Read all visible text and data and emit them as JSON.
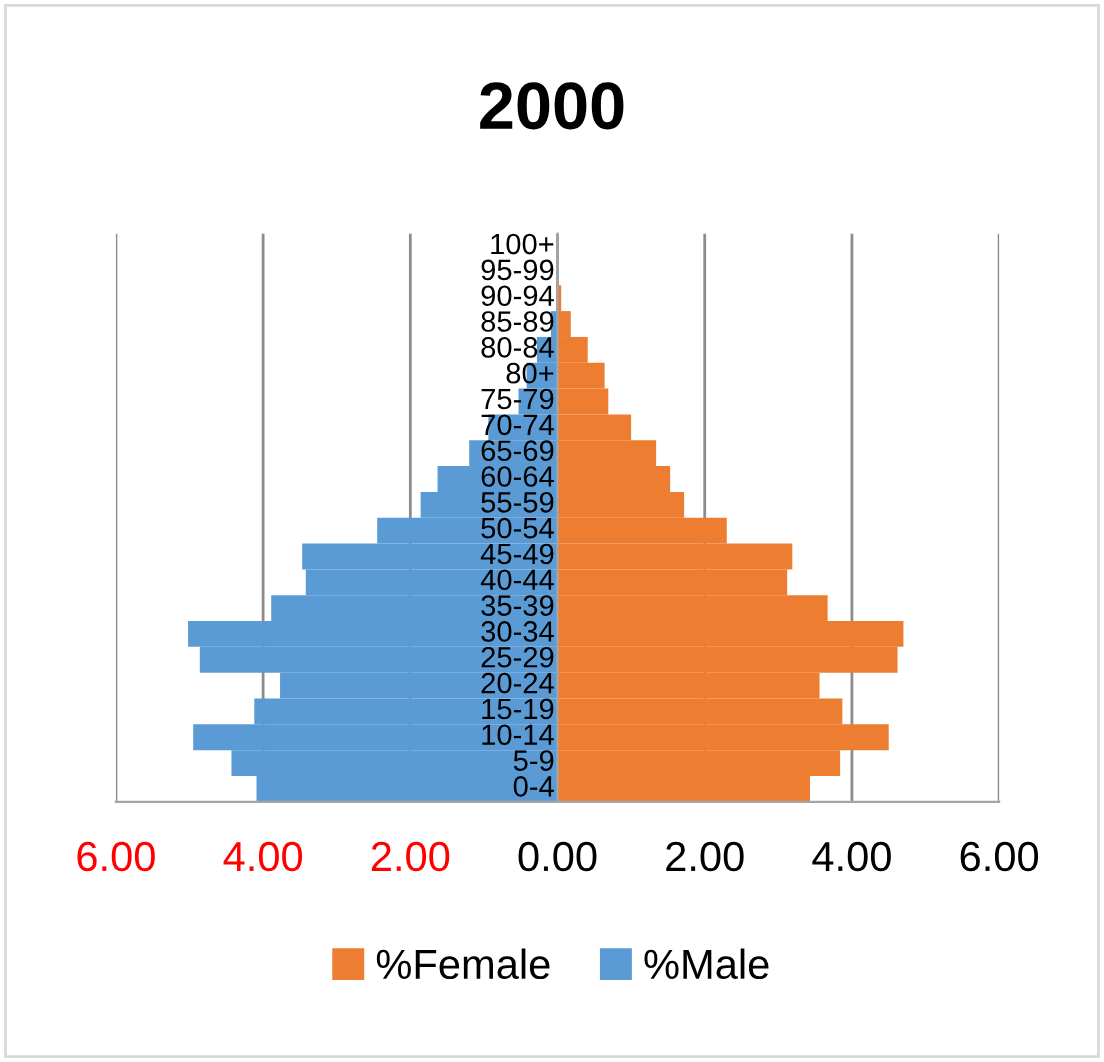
{
  "chart_data": {
    "type": "bar",
    "orientation": "horizontal",
    "title": "2000",
    "categories": [
      "100+",
      "95-99",
      "90-94",
      "85-89",
      "80-84",
      "80+",
      "75-79",
      "70-74",
      "65-69",
      "60-64",
      "55-59",
      "50-54",
      "45-49",
      "40-44",
      "35-39",
      "30-34",
      "25-29",
      "20-24",
      "15-19",
      "10-14",
      "5-9",
      "0-4"
    ],
    "series": [
      {
        "name": "%Female",
        "color": "#ed7d31",
        "values": [
          0,
          0,
          0.05,
          0.18,
          0.41,
          0.64,
          0.69,
          1.0,
          1.34,
          1.53,
          1.72,
          2.3,
          3.19,
          3.12,
          3.67,
          4.7,
          4.62,
          3.56,
          3.87,
          4.5,
          3.84,
          3.43
        ]
      },
      {
        "name": "%Male",
        "color": "#5b9bd5",
        "values": [
          0,
          0,
          null,
          -0.09,
          -0.28,
          -0.42,
          -0.53,
          -0.94,
          -1.2,
          -1.63,
          -1.86,
          -2.45,
          -3.47,
          -3.42,
          -3.89,
          -5.02,
          -4.86,
          -3.77,
          -4.12,
          -4.95,
          -4.43,
          -4.09
        ]
      }
    ],
    "xlim": [
      -6,
      6
    ],
    "xticks": [
      {
        "value": -6,
        "label": "6.00"
      },
      {
        "value": -4,
        "label": "4.00"
      },
      {
        "value": -2,
        "label": "2.00"
      },
      {
        "value": 0,
        "label": "0.00"
      },
      {
        "value": 2,
        "label": "2.00"
      },
      {
        "value": 4,
        "label": "4.00"
      },
      {
        "value": 6,
        "label": "6.00"
      }
    ],
    "grid": "x",
    "legend": "bottom",
    "stacked": true
  }
}
